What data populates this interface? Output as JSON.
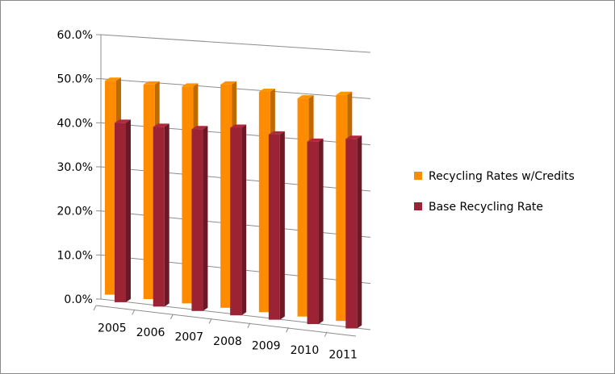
{
  "chart_data": {
    "type": "bar",
    "subtype": "3d-clustered-column",
    "title": "",
    "xlabel": "",
    "ylabel": "",
    "categories": [
      "2005",
      "2006",
      "2007",
      "2008",
      "2009",
      "2010",
      "2011"
    ],
    "series": [
      {
        "name": "Recycling Rates w/Credits",
        "color": "#ff8c00",
        "values": [
          48.5,
          48.3,
          48.5,
          49.6,
          48.6,
          47.8,
          49.2
        ]
      },
      {
        "name": "Base Recycling Rate",
        "color": "#9b2335",
        "values": [
          40.6,
          40.4,
          40.6,
          41.6,
          40.8,
          39.9,
          41.2
        ]
      }
    ],
    "ylim": [
      0,
      60
    ],
    "yticks": [
      "0.0%",
      "10.0%",
      "20.0%",
      "30.0%",
      "40.0%",
      "50.0%",
      "60.0%"
    ],
    "grid": true,
    "legend_position": "right"
  }
}
